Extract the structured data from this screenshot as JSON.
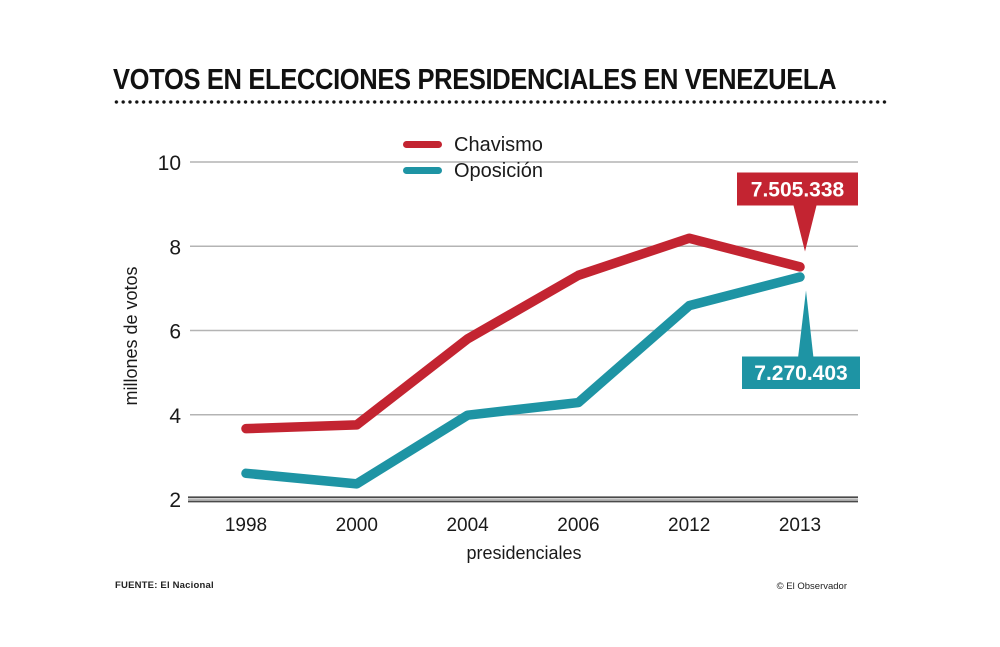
{
  "title": "VOTOS EN ELECCIONES PRESIDENCIALES EN VENEZUELA",
  "footer": {
    "source": "FUENTE: El Nacional",
    "credit": "© El Observador"
  },
  "colors": {
    "chavismo": "#c32431",
    "oposicion": "#1e94a4",
    "grid": "#b4b4b4",
    "axis_dark": "#4a4a4a",
    "axis_light": "#b5b5b5",
    "text": "#1a1a1a",
    "callout_text": "#ffffff"
  },
  "chart_data": {
    "type": "line",
    "title": "VOTOS EN ELECCIONES PRESIDENCIALES EN VENEZUELA",
    "categories": [
      "1998",
      "2000",
      "2004",
      "2006",
      "2012",
      "2013"
    ],
    "series": [
      {
        "name": "Chavismo",
        "color": "#c32431",
        "values": [
          3.67,
          3.76,
          5.8,
          7.31,
          8.19,
          7.51
        ],
        "end_value_label": "7.505.338"
      },
      {
        "name": "Oposición",
        "color": "#1e94a4",
        "values": [
          2.61,
          2.36,
          3.99,
          4.29,
          6.59,
          7.27
        ],
        "end_value_label": "7.270.403"
      }
    ],
    "xlabel": "presidenciales",
    "ylabel": "millones de votos",
    "yticks": [
      2,
      4,
      6,
      8,
      10
    ],
    "ylim": [
      2,
      10.5
    ],
    "units": "millones de votos",
    "grid": true,
    "legend_position": "top-center"
  }
}
